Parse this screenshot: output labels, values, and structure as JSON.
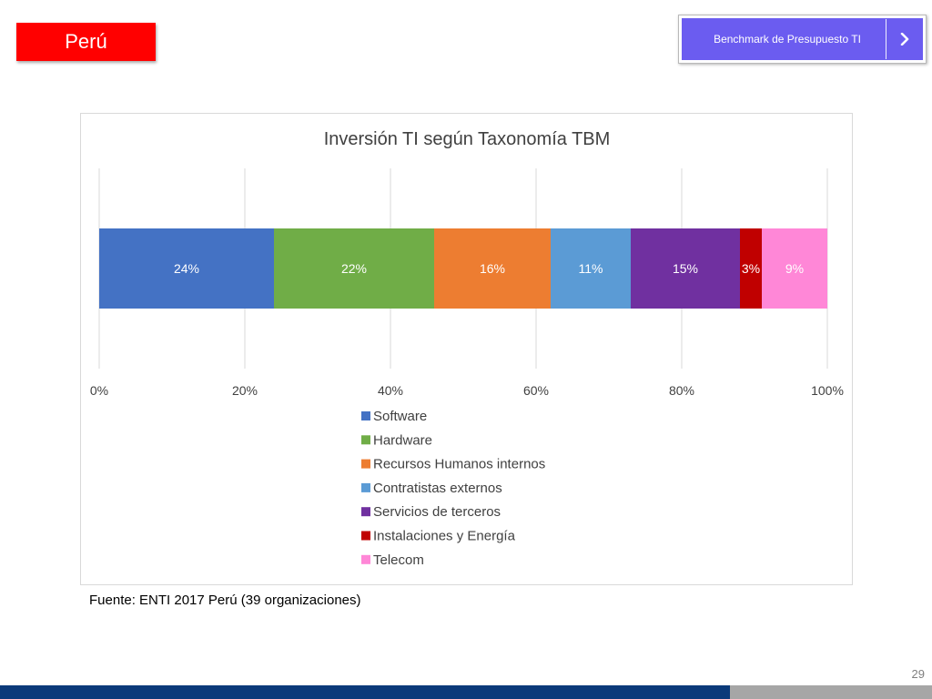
{
  "header": {
    "country_label": "Perú",
    "nav_button_label": "Benchmark de Presupuesto TI",
    "nav_icon": "chevron-right-icon"
  },
  "colors": {
    "country_tag": "#ff0000",
    "nav_button": "#6b5cf0",
    "footer_blue": "#0b3a7a",
    "footer_grey": "#a6a6a6"
  },
  "chart_data": {
    "type": "bar",
    "orientation": "horizontal",
    "stacked": "100%",
    "title": "Inversión TI según Taxonomía TBM",
    "xlim": [
      0,
      100
    ],
    "x_ticks": [
      "0%",
      "20%",
      "40%",
      "60%",
      "80%",
      "100%"
    ],
    "grid": true,
    "legend_position": "bottom",
    "series": [
      {
        "name": "Software",
        "value": 24,
        "label": "24%",
        "color": "#4472c4"
      },
      {
        "name": "Hardware",
        "value": 22,
        "label": "22%",
        "color": "#70ad47"
      },
      {
        "name": "Recursos Humanos internos",
        "value": 16,
        "label": "16%",
        "color": "#ed7d31"
      },
      {
        "name": "Contratistas externos",
        "value": 11,
        "label": "11%",
        "color": "#5b9bd5"
      },
      {
        "name": "Servicios de terceros",
        "value": 15,
        "label": "15%",
        "color": "#7030a0"
      },
      {
        "name": "Instalaciones y Energía",
        "value": 3,
        "label": "3%",
        "color": "#c00000"
      },
      {
        "name": "Telecom",
        "value": 9,
        "label": "9%",
        "color": "#ff87d7"
      }
    ]
  },
  "footer": {
    "source_note": "Fuente: ENTI 2017 Perú (39 organizaciones)",
    "page_number": "29"
  }
}
